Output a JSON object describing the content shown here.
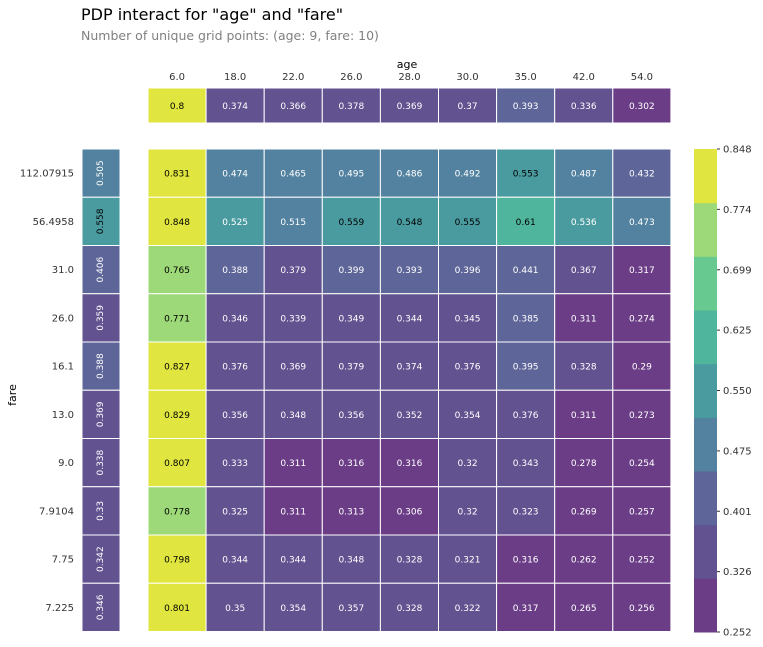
{
  "title": "PDP interact for \"age\" and \"fare\"",
  "subtitle": "Number of unique grid points: (age: 9, fare: 10)",
  "chart_data": {
    "type": "heatmap",
    "xlabel": "age",
    "ylabel": "fare",
    "x_ticks": [
      "6.0",
      "18.0",
      "22.0",
      "26.0",
      "28.0",
      "30.0",
      "35.0",
      "42.0",
      "54.0"
    ],
    "y_ticks": [
      "112.07915",
      "56.4958",
      "31.0",
      "26.0",
      "16.1",
      "13.0",
      "9.0",
      "7.9104",
      "7.75",
      "7.225"
    ],
    "age_pdp": [
      0.8,
      0.374,
      0.366,
      0.378,
      0.369,
      0.37,
      0.393,
      0.336,
      0.302
    ],
    "fare_pdp": [
      0.505,
      0.558,
      0.406,
      0.359,
      0.388,
      0.369,
      0.338,
      0.33,
      0.342,
      0.346
    ],
    "values": [
      [
        0.831,
        0.474,
        0.465,
        0.495,
        0.486,
        0.492,
        0.553,
        0.487,
        0.432
      ],
      [
        0.848,
        0.525,
        0.515,
        0.559,
        0.548,
        0.555,
        0.61,
        0.536,
        0.473
      ],
      [
        0.765,
        0.388,
        0.379,
        0.399,
        0.393,
        0.396,
        0.441,
        0.367,
        0.317
      ],
      [
        0.771,
        0.346,
        0.339,
        0.349,
        0.344,
        0.345,
        0.385,
        0.311,
        0.274
      ],
      [
        0.827,
        0.376,
        0.369,
        0.379,
        0.374,
        0.376,
        0.395,
        0.328,
        0.29
      ],
      [
        0.829,
        0.356,
        0.348,
        0.356,
        0.352,
        0.354,
        0.376,
        0.311,
        0.273
      ],
      [
        0.807,
        0.333,
        0.311,
        0.316,
        0.316,
        0.32,
        0.343,
        0.278,
        0.254
      ],
      [
        0.778,
        0.325,
        0.311,
        0.313,
        0.306,
        0.32,
        0.323,
        0.269,
        0.257
      ],
      [
        0.798,
        0.344,
        0.344,
        0.348,
        0.328,
        0.321,
        0.316,
        0.262,
        0.252
      ],
      [
        0.801,
        0.35,
        0.354,
        0.357,
        0.328,
        0.322,
        0.317,
        0.265,
        0.256
      ]
    ],
    "colorbar_ticks": [
      "0.848",
      "0.774",
      "0.699",
      "0.625",
      "0.550",
      "0.475",
      "0.401",
      "0.326",
      "0.252"
    ],
    "color_min": 0.252,
    "color_max": 0.848,
    "colormap": [
      "#6b3d86",
      "#625290",
      "#5e6598",
      "#52829f",
      "#4a9ba0",
      "#4fb59c",
      "#67c98f",
      "#9dd978",
      "#e0e63f"
    ],
    "grid": false
  }
}
